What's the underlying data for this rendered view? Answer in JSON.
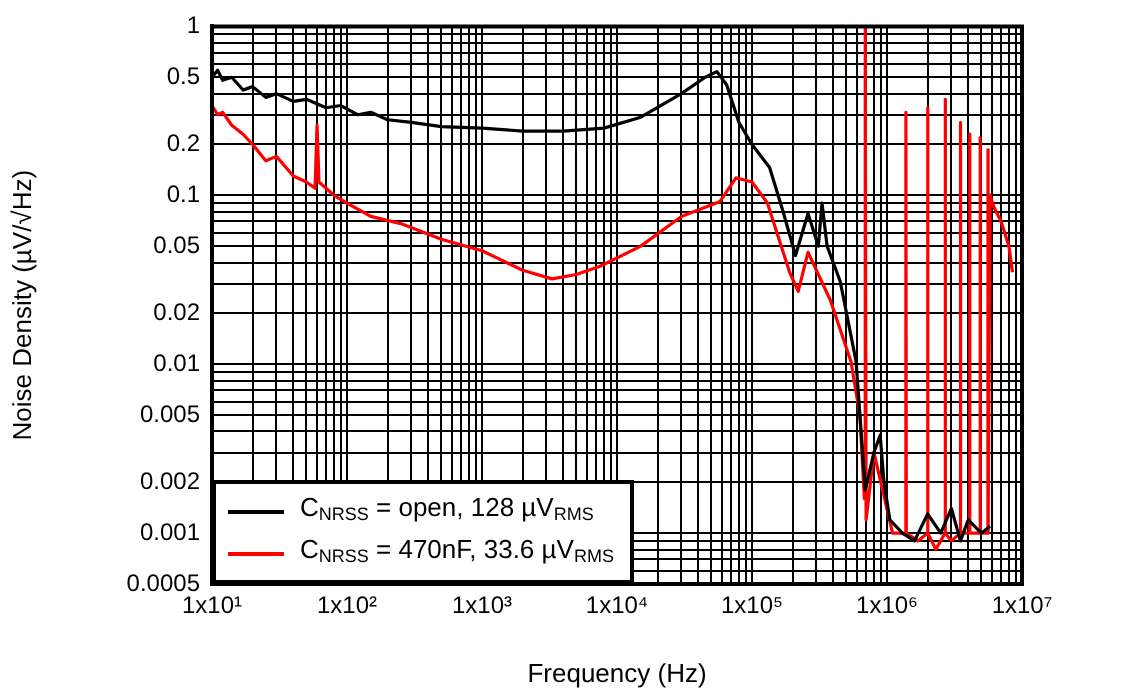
{
  "chart_data": {
    "type": "line",
    "xlabel": "Frequency (Hz)",
    "ylabel": "Noise Density (µV/√Hz)",
    "log": "xy",
    "grid": true,
    "legend": "bottom left",
    "marker": "none",
    "line_style": "solid",
    "xlim": [
      10,
      10000000
    ],
    "ylim": [
      0.0005,
      1
    ],
    "xticks": [
      {
        "value": 10,
        "label": "1x10¹"
      },
      {
        "value": 20,
        "label": null
      },
      {
        "value": 30,
        "label": null
      },
      {
        "value": 40,
        "label": null
      },
      {
        "value": 50,
        "label": null
      },
      {
        "value": 60,
        "label": null
      },
      {
        "value": 70,
        "label": null
      },
      {
        "value": 80,
        "label": null
      },
      {
        "value": 90,
        "label": null
      },
      {
        "value": 100,
        "label": "1x10²"
      },
      {
        "value": 200,
        "label": null
      },
      {
        "value": 300,
        "label": null
      },
      {
        "value": 400,
        "label": null
      },
      {
        "value": 500,
        "label": null
      },
      {
        "value": 600,
        "label": null
      },
      {
        "value": 700,
        "label": null
      },
      {
        "value": 800,
        "label": null
      },
      {
        "value": 900,
        "label": null
      },
      {
        "value": 1000,
        "label": "1x10³"
      },
      {
        "value": 2000,
        "label": null
      },
      {
        "value": 3000,
        "label": null
      },
      {
        "value": 4000,
        "label": null
      },
      {
        "value": 5000,
        "label": null
      },
      {
        "value": 6000,
        "label": null
      },
      {
        "value": 7000,
        "label": null
      },
      {
        "value": 8000,
        "label": null
      },
      {
        "value": 9000,
        "label": null
      },
      {
        "value": 10000,
        "label": "1x10⁴"
      },
      {
        "value": 20000,
        "label": null
      },
      {
        "value": 30000,
        "label": null
      },
      {
        "value": 40000,
        "label": null
      },
      {
        "value": 50000,
        "label": null
      },
      {
        "value": 60000,
        "label": null
      },
      {
        "value": 70000,
        "label": null
      },
      {
        "value": 80000,
        "label": null
      },
      {
        "value": 90000,
        "label": null
      },
      {
        "value": 100000,
        "label": "1x10⁵"
      },
      {
        "value": 200000,
        "label": null
      },
      {
        "value": 300000,
        "label": null
      },
      {
        "value": 400000,
        "label": null
      },
      {
        "value": 500000,
        "label": null
      },
      {
        "value": 600000,
        "label": null
      },
      {
        "value": 700000,
        "label": null
      },
      {
        "value": 800000,
        "label": null
      },
      {
        "value": 900000,
        "label": null
      },
      {
        "value": 1000000,
        "label": "1x10⁶"
      },
      {
        "value": 2000000,
        "label": null
      },
      {
        "value": 3000000,
        "label": null
      },
      {
        "value": 4000000,
        "label": null
      },
      {
        "value": 5000000,
        "label": null
      },
      {
        "value": 6000000,
        "label": null
      },
      {
        "value": 7000000,
        "label": null
      },
      {
        "value": 8000000,
        "label": null
      },
      {
        "value": 9000000,
        "label": null
      },
      {
        "value": 10000000,
        "label": "1x10⁷"
      }
    ],
    "yticks": [
      0.0005,
      {
        "value": 0.0006,
        "label": null
      },
      {
        "value": 0.0007,
        "label": null
      },
      {
        "value": 0.0008,
        "label": null
      },
      {
        "value": 0.0009,
        "label": null
      },
      0.001,
      0.002,
      {
        "value": 0.003,
        "label": null
      },
      {
        "value": 0.004,
        "label": null
      },
      0.005,
      {
        "value": 0.006,
        "label": null
      },
      {
        "value": 0.007,
        "label": null
      },
      {
        "value": 0.008,
        "label": null
      },
      {
        "value": 0.009,
        "label": null
      },
      0.01,
      0.02,
      {
        "value": 0.03,
        "label": null
      },
      {
        "value": 0.04,
        "label": null
      },
      0.05,
      {
        "value": 0.06,
        "label": null
      },
      {
        "value": 0.07,
        "label": null
      },
      {
        "value": 0.08,
        "label": null
      },
      {
        "value": 0.09,
        "label": null
      },
      0.1,
      0.2,
      {
        "value": 0.3,
        "label": null
      },
      {
        "value": 0.4,
        "label": null
      },
      0.5,
      {
        "value": 0.6,
        "label": null
      },
      {
        "value": 0.7,
        "label": null
      },
      {
        "value": 0.8,
        "label": null
      },
      {
        "value": 0.9,
        "label": null
      },
      1
    ],
    "series": [
      {
        "name": "C$_{NRSS}$ = open, 128 µV$_{RMS}$",
        "color": "#000000",
        "x": [
          10,
          11,
          12,
          14,
          17,
          20,
          25,
          30,
          40,
          50,
          70,
          90,
          120,
          150,
          200,
          300,
          500,
          1000,
          2000,
          4000,
          8000,
          15000,
          30000,
          45000,
          55000,
          65000,
          80000,
          100000,
          135000,
          170000,
          210000,
          260000,
          310000,
          330000,
          360000,
          450000,
          590000,
          630000,
          690000,
          800000,
          890000,
          950000,
          1050000,
          1300000,
          1600000,
          2000000,
          2500000,
          3000000,
          3500000,
          4000000,
          5000000,
          5800000
        ],
        "values": [
          0.5,
          0.55,
          0.48,
          0.5,
          0.42,
          0.44,
          0.38,
          0.4,
          0.36,
          0.37,
          0.33,
          0.34,
          0.3,
          0.31,
          0.28,
          0.27,
          0.255,
          0.25,
          0.24,
          0.24,
          0.25,
          0.29,
          0.4,
          0.5,
          0.54,
          0.45,
          0.27,
          0.2,
          0.146,
          0.08,
          0.044,
          0.078,
          0.05,
          0.09,
          0.05,
          0.031,
          0.0104,
          0.005,
          0.0018,
          0.003,
          0.0038,
          0.002,
          0.0012,
          0.001,
          0.0009,
          0.0013,
          0.001,
          0.0014,
          0.0009,
          0.0012,
          0.001,
          0.0011
        ]
      },
      {
        "name": "C$_{NRSS}$ = 470nF, 33.6 µV$_{RMS}$",
        "color": "#ff0000",
        "x": [
          10,
          11,
          12,
          14,
          17,
          20,
          25,
          30,
          40,
          50,
          58,
          60,
          62,
          80,
          100,
          150,
          250,
          500,
          1000,
          2000,
          3300,
          5000,
          7500,
          15000,
          30000,
          58000,
          76000,
          100000,
          130000,
          190000,
          220000,
          260000,
          380000,
          540000,
          630000,
          680000,
          690000,
          700000,
          800000,
          900000,
          1100000,
          1370000,
          1380000,
          1390000,
          1700000,
          1990000,
          2000000,
          2010000,
          2300000,
          2690000,
          2700000,
          2710000,
          3000000,
          3490000,
          3500000,
          3510000,
          4090000,
          4100000,
          4110000,
          4890000,
          4900000,
          4910000,
          5590000,
          5600000,
          5610000,
          5800000,
          6200000,
          7000000,
          8000000,
          8500000
        ],
        "values": [
          0.34,
          0.3,
          0.31,
          0.26,
          0.23,
          0.2,
          0.16,
          0.17,
          0.13,
          0.12,
          0.11,
          0.26,
          0.12,
          0.1,
          0.09,
          0.075,
          0.068,
          0.055,
          0.047,
          0.036,
          0.032,
          0.034,
          0.038,
          0.05,
          0.075,
          0.092,
          0.127,
          0.12,
          0.09,
          0.035,
          0.027,
          0.046,
          0.024,
          0.0104,
          0.005,
          0.0016,
          1,
          0.0012,
          0.003,
          0.002,
          0.001,
          0.001,
          0.31,
          0.001,
          0.0009,
          0.001,
          0.33,
          0.001,
          0.0008,
          0.001,
          0.37,
          0.001,
          0.0009,
          0.001,
          0.27,
          0.001,
          0.001,
          0.23,
          0.001,
          0.001,
          0.22,
          0.001,
          0.001,
          0.186,
          0.001,
          0.1,
          0.085,
          0.07,
          0.05,
          0.035
        ]
      }
    ]
  }
}
